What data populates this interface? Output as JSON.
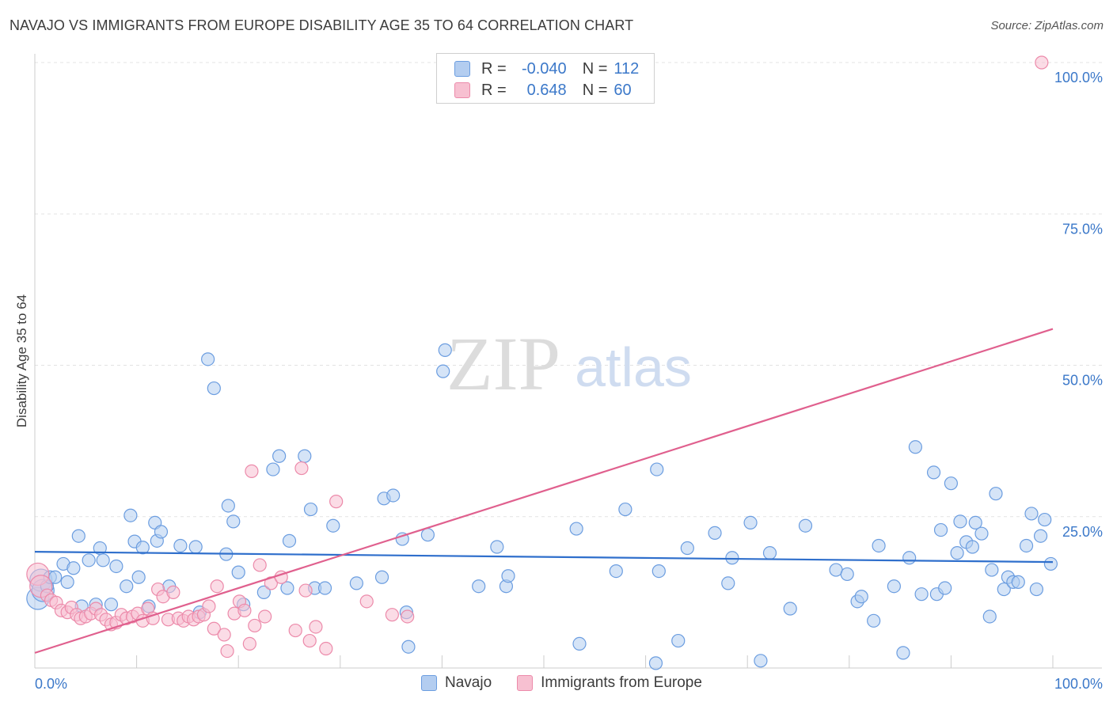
{
  "title": "NAVAJO VS IMMIGRANTS FROM EUROPE DISABILITY AGE 35 TO 64 CORRELATION CHART",
  "source": "Source: ZipAtlas.com",
  "watermark": {
    "zip": "ZIP",
    "atlas": "atlas"
  },
  "legend": {
    "r_label": "R =",
    "n_label": "N =",
    "navajo": {
      "r": "-0.040",
      "n": "112"
    },
    "europe": {
      "r": "0.648",
      "n": "60"
    }
  },
  "bottom_legend": {
    "navajo": "Navajo",
    "europe": "Immigrants from Europe"
  },
  "colors": {
    "navajo_fill": "#b3cdf0",
    "navajo_stroke": "#6b9de0",
    "navajo_line": "#2f6fcc",
    "europe_fill": "#f7c0d1",
    "europe_stroke": "#ec8aaa",
    "europe_line": "#e0608e",
    "axis_text": "#3b78c9"
  },
  "chart_data": {
    "type": "scatter",
    "title": "NAVAJO VS IMMIGRANTS FROM EUROPE DISABILITY AGE 35 TO 64 CORRELATION CHART",
    "xlabel": "",
    "ylabel": "Disability Age 35 to 64",
    "xlim": [
      0,
      100
    ],
    "ylim": [
      0,
      100
    ],
    "x_tick_labels": [
      "0.0%",
      "100.0%"
    ],
    "y_tick_labels": [
      "25.0%",
      "50.0%",
      "75.0%",
      "100.0%"
    ],
    "y_ticks": [
      25,
      50,
      75,
      100
    ],
    "grid": true,
    "series": [
      {
        "name": "Navajo",
        "r": -0.04,
        "n": 112,
        "trend": {
          "x": [
            0,
            100
          ],
          "y": [
            19.2,
            17.5
          ]
        },
        "points": [
          [
            0.3,
            11.5
          ],
          [
            0.6,
            14.5
          ],
          [
            0.8,
            12.8
          ],
          [
            1.2,
            13.5
          ],
          [
            1.5,
            15.0
          ],
          [
            2.0,
            15.0
          ],
          [
            2.8,
            17.2
          ],
          [
            3.2,
            14.2
          ],
          [
            3.8,
            16.5
          ],
          [
            4.3,
            21.8
          ],
          [
            4.6,
            10.2
          ],
          [
            5.3,
            17.8
          ],
          [
            6.0,
            10.5
          ],
          [
            6.4,
            19.8
          ],
          [
            6.7,
            17.8
          ],
          [
            7.5,
            10.5
          ],
          [
            8.0,
            16.8
          ],
          [
            9.0,
            13.5
          ],
          [
            9.4,
            25.2
          ],
          [
            9.8,
            20.9
          ],
          [
            10.2,
            15.0
          ],
          [
            10.6,
            19.9
          ],
          [
            11.2,
            10.2
          ],
          [
            11.8,
            24.0
          ],
          [
            12.0,
            21.0
          ],
          [
            12.4,
            22.5
          ],
          [
            13.2,
            13.5
          ],
          [
            14.3,
            20.2
          ],
          [
            15.8,
            20.0
          ],
          [
            16.2,
            9.2
          ],
          [
            17.0,
            51.0
          ],
          [
            17.6,
            46.2
          ],
          [
            18.8,
            18.8
          ],
          [
            19.0,
            26.8
          ],
          [
            19.5,
            24.2
          ],
          [
            20.0,
            15.8
          ],
          [
            20.5,
            10.5
          ],
          [
            22.5,
            12.5
          ],
          [
            23.4,
            32.8
          ],
          [
            24.0,
            35.0
          ],
          [
            24.8,
            13.2
          ],
          [
            25.0,
            21.0
          ],
          [
            26.5,
            35.0
          ],
          [
            27.1,
            26.2
          ],
          [
            27.5,
            13.2
          ],
          [
            28.5,
            13.2
          ],
          [
            29.3,
            23.5
          ],
          [
            31.6,
            14.0
          ],
          [
            34.1,
            15.0
          ],
          [
            34.3,
            28.0
          ],
          [
            35.2,
            28.5
          ],
          [
            36.1,
            21.3
          ],
          [
            36.5,
            9.2
          ],
          [
            36.7,
            3.5
          ],
          [
            38.6,
            22.0
          ],
          [
            40.3,
            52.5
          ],
          [
            40.1,
            49.0
          ],
          [
            43.6,
            13.5
          ],
          [
            45.4,
            20.0
          ],
          [
            46.3,
            13.5
          ],
          [
            46.5,
            15.2
          ],
          [
            53.2,
            23.0
          ],
          [
            53.5,
            4.0
          ],
          [
            57.1,
            16.0
          ],
          [
            58.0,
            26.2
          ],
          [
            61.0,
            0.8
          ],
          [
            61.1,
            32.8
          ],
          [
            61.3,
            16.0
          ],
          [
            63.2,
            4.5
          ],
          [
            64.1,
            19.8
          ],
          [
            66.8,
            22.3
          ],
          [
            68.1,
            14.0
          ],
          [
            68.5,
            18.2
          ],
          [
            70.3,
            24.0
          ],
          [
            71.3,
            1.2
          ],
          [
            72.2,
            19.0
          ],
          [
            74.2,
            9.8
          ],
          [
            75.7,
            23.5
          ],
          [
            78.7,
            16.2
          ],
          [
            79.8,
            15.5
          ],
          [
            80.8,
            11.0
          ],
          [
            81.2,
            11.8
          ],
          [
            82.4,
            7.8
          ],
          [
            82.9,
            20.2
          ],
          [
            84.4,
            13.5
          ],
          [
            85.3,
            2.5
          ],
          [
            85.9,
            18.2
          ],
          [
            86.5,
            36.5
          ],
          [
            87.1,
            12.2
          ],
          [
            88.3,
            32.3
          ],
          [
            88.6,
            12.2
          ],
          [
            89.0,
            22.8
          ],
          [
            89.4,
            13.2
          ],
          [
            90.0,
            30.5
          ],
          [
            90.6,
            19.0
          ],
          [
            90.9,
            24.2
          ],
          [
            91.5,
            20.8
          ],
          [
            92.1,
            20.0
          ],
          [
            92.4,
            24.0
          ],
          [
            93.0,
            22.2
          ],
          [
            93.8,
            8.5
          ],
          [
            94.0,
            16.2
          ],
          [
            94.4,
            28.8
          ],
          [
            95.2,
            13.0
          ],
          [
            95.6,
            15.0
          ],
          [
            96.1,
            14.2
          ],
          [
            96.6,
            14.2
          ],
          [
            97.4,
            20.2
          ],
          [
            97.9,
            25.5
          ],
          [
            98.4,
            13.0
          ],
          [
            98.8,
            21.8
          ],
          [
            99.2,
            24.5
          ],
          [
            99.8,
            17.2
          ]
        ]
      },
      {
        "name": "Immigrants from Europe",
        "r": 0.648,
        "n": 60,
        "trend": {
          "x": [
            0,
            100
          ],
          "y": [
            2.5,
            56.0
          ]
        },
        "points": [
          [
            0.3,
            15.5
          ],
          [
            0.6,
            13.5
          ],
          [
            1.2,
            12.0
          ],
          [
            1.6,
            11.2
          ],
          [
            2.1,
            10.8
          ],
          [
            2.6,
            9.5
          ],
          [
            3.2,
            9.2
          ],
          [
            3.6,
            10.0
          ],
          [
            4.1,
            8.8
          ],
          [
            4.5,
            8.2
          ],
          [
            5.0,
            8.5
          ],
          [
            5.5,
            9.0
          ],
          [
            6.0,
            9.8
          ],
          [
            6.5,
            8.8
          ],
          [
            7.0,
            8.0
          ],
          [
            7.5,
            7.2
          ],
          [
            8.0,
            7.5
          ],
          [
            8.5,
            8.8
          ],
          [
            9.0,
            8.2
          ],
          [
            9.6,
            8.5
          ],
          [
            10.1,
            9.0
          ],
          [
            10.6,
            7.8
          ],
          [
            11.1,
            9.8
          ],
          [
            11.6,
            8.2
          ],
          [
            12.1,
            13.0
          ],
          [
            12.6,
            11.8
          ],
          [
            13.1,
            8.0
          ],
          [
            13.6,
            12.5
          ],
          [
            14.1,
            8.2
          ],
          [
            14.6,
            7.8
          ],
          [
            15.1,
            8.5
          ],
          [
            15.6,
            8.0
          ],
          [
            16.1,
            8.5
          ],
          [
            16.6,
            8.8
          ],
          [
            17.1,
            10.2
          ],
          [
            17.6,
            6.5
          ],
          [
            17.9,
            13.5
          ],
          [
            18.6,
            5.5
          ],
          [
            18.9,
            2.8
          ],
          [
            19.6,
            9.0
          ],
          [
            20.1,
            11.0
          ],
          [
            20.6,
            9.5
          ],
          [
            21.1,
            4.0
          ],
          [
            21.6,
            7.0
          ],
          [
            22.1,
            17.0
          ],
          [
            22.6,
            8.5
          ],
          [
            23.2,
            14.0
          ],
          [
            24.2,
            15.0
          ],
          [
            25.6,
            6.2
          ],
          [
            26.6,
            12.8
          ],
          [
            27.0,
            4.5
          ],
          [
            27.6,
            6.8
          ],
          [
            28.6,
            3.2
          ],
          [
            29.6,
            27.5
          ],
          [
            32.6,
            11.0
          ],
          [
            35.1,
            8.8
          ],
          [
            36.6,
            8.5
          ],
          [
            21.3,
            32.5
          ],
          [
            26.2,
            33.0
          ],
          [
            98.9,
            100.0
          ]
        ]
      }
    ]
  }
}
